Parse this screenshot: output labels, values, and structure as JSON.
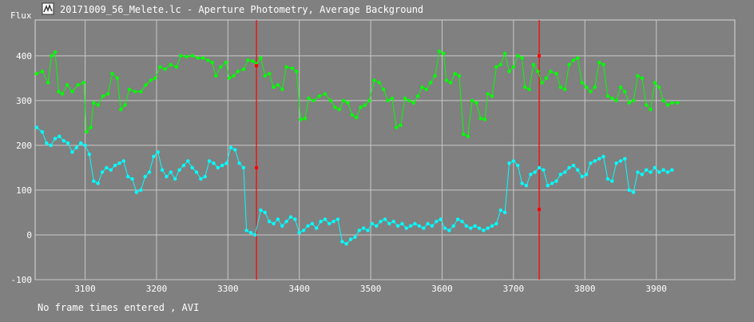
{
  "window": {
    "title": "20171009_56_Melete.lc - Aperture Photometry, Average Background",
    "icon": "lightcurve-app-icon"
  },
  "status_text": "No frame times entered , AVI",
  "chart_data": {
    "type": "line",
    "ylabel": "Flux",
    "xlim": [
      3030,
      4010
    ],
    "ylim": [
      -100,
      480
    ],
    "x_ticks": [
      3100,
      3200,
      3300,
      3400,
      3500,
      3600,
      3700,
      3800,
      3900
    ],
    "y_ticks": [
      -100,
      0,
      100,
      200,
      300,
      400
    ],
    "grid": true,
    "colors": {
      "background": "#808080",
      "grid": "#c8c8c8",
      "cursor": "#ff0000"
    },
    "cursor_lines": [
      3340,
      3736
    ],
    "series": [
      {
        "color": "#00ff00",
        "points": [
          [
            3032,
            360
          ],
          [
            3040,
            365
          ],
          [
            3048,
            340
          ],
          [
            3053,
            400
          ],
          [
            3058,
            408
          ],
          [
            3063,
            320
          ],
          [
            3068,
            315
          ],
          [
            3075,
            335
          ],
          [
            3082,
            320
          ],
          [
            3090,
            335
          ],
          [
            3098,
            340
          ],
          [
            3102,
            230
          ],
          [
            3108,
            240
          ],
          [
            3112,
            295
          ],
          [
            3118,
            290
          ],
          [
            3125,
            310
          ],
          [
            3132,
            315
          ],
          [
            3138,
            360
          ],
          [
            3145,
            350
          ],
          [
            3150,
            280
          ],
          [
            3156,
            290
          ],
          [
            3162,
            325
          ],
          [
            3170,
            320
          ],
          [
            3178,
            320
          ],
          [
            3185,
            335
          ],
          [
            3192,
            345
          ],
          [
            3198,
            350
          ],
          [
            3205,
            375
          ],
          [
            3212,
            370
          ],
          [
            3220,
            380
          ],
          [
            3228,
            375
          ],
          [
            3234,
            400
          ],
          [
            3242,
            398
          ],
          [
            3250,
            400
          ],
          [
            3258,
            395
          ],
          [
            3265,
            395
          ],
          [
            3272,
            390
          ],
          [
            3278,
            385
          ],
          [
            3283,
            355
          ],
          [
            3290,
            375
          ],
          [
            3297,
            385
          ],
          [
            3302,
            350
          ],
          [
            3308,
            355
          ],
          [
            3314,
            365
          ],
          [
            3322,
            370
          ],
          [
            3328,
            390
          ],
          [
            3335,
            388
          ],
          [
            3340,
            382
          ],
          [
            3346,
            395
          ],
          [
            3352,
            355
          ],
          [
            3358,
            360
          ],
          [
            3364,
            330
          ],
          [
            3370,
            335
          ],
          [
            3376,
            325
          ],
          [
            3382,
            375
          ],
          [
            3390,
            372
          ],
          [
            3396,
            365
          ],
          [
            3402,
            258
          ],
          [
            3408,
            260
          ],
          [
            3413,
            305
          ],
          [
            3420,
            300
          ],
          [
            3428,
            310
          ],
          [
            3436,
            315
          ],
          [
            3444,
            300
          ],
          [
            3450,
            285
          ],
          [
            3456,
            280
          ],
          [
            3462,
            300
          ],
          [
            3468,
            295
          ],
          [
            3474,
            268
          ],
          [
            3480,
            262
          ],
          [
            3486,
            285
          ],
          [
            3492,
            290
          ],
          [
            3498,
            300
          ],
          [
            3505,
            345
          ],
          [
            3512,
            340
          ],
          [
            3518,
            325
          ],
          [
            3524,
            300
          ],
          [
            3530,
            305
          ],
          [
            3536,
            240
          ],
          [
            3542,
            245
          ],
          [
            3548,
            305
          ],
          [
            3554,
            300
          ],
          [
            3560,
            295
          ],
          [
            3566,
            310
          ],
          [
            3572,
            330
          ],
          [
            3578,
            325
          ],
          [
            3584,
            340
          ],
          [
            3590,
            355
          ],
          [
            3596,
            410
          ],
          [
            3602,
            405
          ],
          [
            3606,
            345
          ],
          [
            3612,
            340
          ],
          [
            3618,
            360
          ],
          [
            3624,
            355
          ],
          [
            3630,
            225
          ],
          [
            3636,
            220
          ],
          [
            3642,
            300
          ],
          [
            3648,
            295
          ],
          [
            3654,
            260
          ],
          [
            3660,
            258
          ],
          [
            3664,
            315
          ],
          [
            3670,
            310
          ],
          [
            3676,
            375
          ],
          [
            3682,
            380
          ],
          [
            3688,
            405
          ],
          [
            3694,
            365
          ],
          [
            3700,
            375
          ],
          [
            3706,
            400
          ],
          [
            3712,
            395
          ],
          [
            3716,
            330
          ],
          [
            3722,
            325
          ],
          [
            3728,
            380
          ],
          [
            3734,
            365
          ],
          [
            3740,
            340
          ],
          [
            3746,
            350
          ],
          [
            3752,
            365
          ],
          [
            3760,
            360
          ],
          [
            3766,
            330
          ],
          [
            3772,
            325
          ],
          [
            3778,
            380
          ],
          [
            3784,
            390
          ],
          [
            3790,
            395
          ],
          [
            3796,
            340
          ],
          [
            3802,
            330
          ],
          [
            3808,
            320
          ],
          [
            3814,
            330
          ],
          [
            3820,
            385
          ],
          [
            3826,
            380
          ],
          [
            3832,
            310
          ],
          [
            3838,
            305
          ],
          [
            3844,
            300
          ],
          [
            3850,
            330
          ],
          [
            3856,
            320
          ],
          [
            3862,
            295
          ],
          [
            3868,
            300
          ],
          [
            3874,
            355
          ],
          [
            3880,
            350
          ],
          [
            3886,
            290
          ],
          [
            3892,
            280
          ],
          [
            3898,
            340
          ],
          [
            3904,
            330
          ],
          [
            3910,
            300
          ],
          [
            3916,
            290
          ],
          [
            3922,
            295
          ],
          [
            3930,
            295
          ]
        ]
      },
      {
        "color": "#00ffff",
        "points": [
          [
            3032,
            240
          ],
          [
            3040,
            230
          ],
          [
            3046,
            205
          ],
          [
            3052,
            200
          ],
          [
            3058,
            215
          ],
          [
            3064,
            220
          ],
          [
            3070,
            210
          ],
          [
            3076,
            205
          ],
          [
            3082,
            185
          ],
          [
            3088,
            195
          ],
          [
            3094,
            205
          ],
          [
            3100,
            200
          ],
          [
            3106,
            180
          ],
          [
            3112,
            120
          ],
          [
            3118,
            115
          ],
          [
            3124,
            140
          ],
          [
            3130,
            150
          ],
          [
            3136,
            145
          ],
          [
            3142,
            155
          ],
          [
            3148,
            160
          ],
          [
            3154,
            165
          ],
          [
            3160,
            130
          ],
          [
            3166,
            125
          ],
          [
            3172,
            95
          ],
          [
            3178,
            100
          ],
          [
            3184,
            130
          ],
          [
            3190,
            140
          ],
          [
            3196,
            175
          ],
          [
            3202,
            185
          ],
          [
            3208,
            145
          ],
          [
            3214,
            130
          ],
          [
            3220,
            140
          ],
          [
            3226,
            125
          ],
          [
            3232,
            145
          ],
          [
            3238,
            155
          ],
          [
            3244,
            165
          ],
          [
            3250,
            150
          ],
          [
            3256,
            140
          ],
          [
            3262,
            125
          ],
          [
            3268,
            130
          ],
          [
            3274,
            165
          ],
          [
            3280,
            160
          ],
          [
            3286,
            150
          ],
          [
            3292,
            155
          ],
          [
            3298,
            160
          ],
          [
            3304,
            195
          ],
          [
            3310,
            190
          ],
          [
            3316,
            160
          ],
          [
            3322,
            150
          ],
          [
            3326,
            10
          ],
          [
            3332,
            5
          ],
          [
            3338,
            0
          ],
          [
            3346,
            55
          ],
          [
            3352,
            50
          ],
          [
            3358,
            30
          ],
          [
            3364,
            25
          ],
          [
            3370,
            35
          ],
          [
            3376,
            20
          ],
          [
            3382,
            30
          ],
          [
            3388,
            40
          ],
          [
            3394,
            35
          ],
          [
            3400,
            5
          ],
          [
            3406,
            10
          ],
          [
            3412,
            20
          ],
          [
            3418,
            25
          ],
          [
            3424,
            15
          ],
          [
            3430,
            30
          ],
          [
            3436,
            35
          ],
          [
            3442,
            25
          ],
          [
            3448,
            30
          ],
          [
            3454,
            35
          ],
          [
            3460,
            -15
          ],
          [
            3466,
            -20
          ],
          [
            3472,
            -10
          ],
          [
            3478,
            -5
          ],
          [
            3484,
            10
          ],
          [
            3490,
            15
          ],
          [
            3496,
            10
          ],
          [
            3502,
            25
          ],
          [
            3508,
            20
          ],
          [
            3514,
            30
          ],
          [
            3520,
            35
          ],
          [
            3526,
            25
          ],
          [
            3532,
            30
          ],
          [
            3538,
            20
          ],
          [
            3544,
            25
          ],
          [
            3550,
            15
          ],
          [
            3556,
            20
          ],
          [
            3562,
            25
          ],
          [
            3568,
            20
          ],
          [
            3574,
            15
          ],
          [
            3580,
            25
          ],
          [
            3586,
            20
          ],
          [
            3592,
            30
          ],
          [
            3598,
            35
          ],
          [
            3604,
            15
          ],
          [
            3610,
            10
          ],
          [
            3616,
            20
          ],
          [
            3622,
            35
          ],
          [
            3628,
            30
          ],
          [
            3634,
            20
          ],
          [
            3640,
            15
          ],
          [
            3646,
            20
          ],
          [
            3652,
            15
          ],
          [
            3658,
            10
          ],
          [
            3664,
            15
          ],
          [
            3670,
            20
          ],
          [
            3676,
            25
          ],
          [
            3682,
            55
          ],
          [
            3688,
            50
          ],
          [
            3694,
            160
          ],
          [
            3700,
            165
          ],
          [
            3706,
            155
          ],
          [
            3712,
            115
          ],
          [
            3718,
            110
          ],
          [
            3724,
            135
          ],
          [
            3730,
            140
          ],
          [
            3736,
            150
          ],
          [
            3742,
            145
          ],
          [
            3748,
            110
          ],
          [
            3754,
            115
          ],
          [
            3760,
            120
          ],
          [
            3766,
            135
          ],
          [
            3772,
            140
          ],
          [
            3778,
            150
          ],
          [
            3784,
            155
          ],
          [
            3790,
            145
          ],
          [
            3796,
            130
          ],
          [
            3802,
            135
          ],
          [
            3808,
            160
          ],
          [
            3814,
            165
          ],
          [
            3820,
            170
          ],
          [
            3826,
            175
          ],
          [
            3832,
            125
          ],
          [
            3838,
            120
          ],
          [
            3844,
            160
          ],
          [
            3850,
            165
          ],
          [
            3856,
            170
          ],
          [
            3862,
            100
          ],
          [
            3868,
            95
          ],
          [
            3874,
            140
          ],
          [
            3880,
            135
          ],
          [
            3886,
            145
          ],
          [
            3892,
            140
          ],
          [
            3898,
            150
          ],
          [
            3904,
            140
          ],
          [
            3910,
            145
          ],
          [
            3916,
            140
          ],
          [
            3922,
            145
          ]
        ]
      }
    ],
    "markers": [
      {
        "x": 3340,
        "y": 378,
        "color": "#ff0000"
      },
      {
        "x": 3340,
        "y": 150,
        "color": "#ff0000"
      },
      {
        "x": 3736,
        "y": 400,
        "color": "#ff0000"
      },
      {
        "x": 3736,
        "y": 57,
        "color": "#ff0000"
      }
    ]
  }
}
